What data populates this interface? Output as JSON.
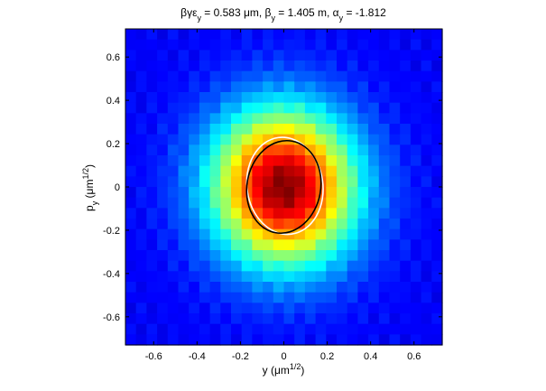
{
  "chart_data": {
    "type": "heatmap",
    "title": {
      "prefix": "βγε",
      "prefix_sub": "y",
      "part1": " = 0.583 μm, β",
      "part1_sub": "y",
      "part2": " = 1.405 m, α",
      "part2_sub": "y",
      "part3": " = -1.812"
    },
    "xlabel": {
      "main": "y (μm",
      "sup": "1/2",
      "close": ")"
    },
    "ylabel": {
      "main": "p",
      "sub": "y",
      "rest": " (μm",
      "sup": "1/2",
      "close": ")"
    },
    "xlim": [
      -0.73,
      0.73
    ],
    "ylim": [
      -0.73,
      0.73
    ],
    "xticks": [
      -0.6,
      -0.4,
      -0.2,
      0,
      0.2,
      0.4,
      0.6
    ],
    "xtick_labels": [
      "-0.6",
      "-0.4",
      "-0.2",
      "0",
      "0.2",
      "0.4",
      "0.6"
    ],
    "yticks": [
      0.6,
      0.4,
      0.2,
      0,
      -0.2,
      -0.4,
      -0.6
    ],
    "ytick_labels": [
      "0.6",
      "0.4",
      "0.2",
      "0",
      "-0.2",
      "-0.4",
      "-0.6"
    ],
    "grid": false,
    "colormap": "jet",
    "distribution": {
      "grid_size": 30,
      "center": [
        0.0,
        0.0
      ],
      "sigma_y": 0.23,
      "sigma_p": 0.25,
      "rotation_deg": 8
    },
    "ellipses": [
      {
        "name": "",
        "color": "#ffffff",
        "cx": 0.005,
        "cy": 0.005,
        "rx": 0.175,
        "ry": 0.225,
        "rotation_deg": -8
      },
      {
        "name": "",
        "color": "#000000",
        "cx": 0.0,
        "cy": 0.0,
        "rx": 0.17,
        "ry": 0.215,
        "rotation_deg": 10
      }
    ]
  }
}
